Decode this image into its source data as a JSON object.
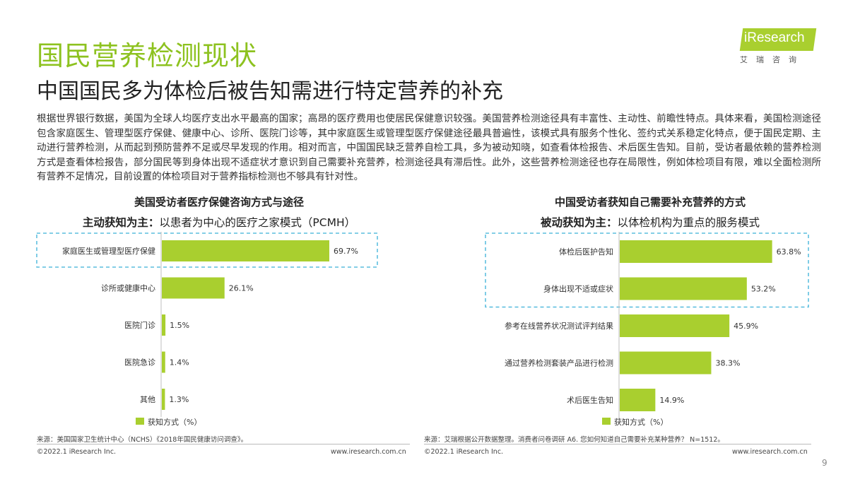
{
  "header": {
    "title": "国民营养检测现状",
    "subtitle": "中国国民多为体检后被告知需进行特定营养的补充"
  },
  "logo": {
    "word": "iResearch",
    "sub": "艾瑞咨询"
  },
  "intro": "根据世界银行数据，美国为全球人均医疗支出水平最高的国家；高昂的医疗费用也使居民保健意识较强。美国营养检测途径具有丰富性、主动性、前瞻性特点。具体来看，美国检测途径包含家庭医生、管理型医疗保健、健康中心、诊所、医院门诊等，其中家庭医生或管理型医疗保健途径最具普遍性，该模式具有服务个性化、签约式关系稳定化特点，便于国民定期、主动进行营养检测，从而起到预防营养不足或尽早发现的作用。相对而言，中国国民缺乏营养自检工具，多为被动知晓，如查看体检报告、术后医生告知。目前，受访者最依赖的营养检测方式是查看体检报告，部分国民等到身体出现不适症状才意识到自己需要补充营养，检测途径具有滞后性。此外，这些营养检测途径也存在局限性，例如体检项目有限，难以全面检测所有营养不足情况，目前设置的体检项目对于营养指标检测也不够具有针对性。",
  "left": {
    "chart_title": "美国受访者医疗保健咨询方式与途径",
    "sub_bold": "主动获知为主：",
    "sub_rest": "以患者为中心的医疗之家模式（PCMH）",
    "source": "来源：美国国家卫生统计中心（NCHS）《2018年国民健康访问调查》。",
    "copyright": "©2022.1 iResearch Inc.",
    "url": "www.iresearch.com.cn"
  },
  "right": {
    "chart_title": "中国受访者获知自己需要补充营养的方式",
    "sub_bold": "被动获知为主：",
    "sub_rest": "以体检机构为重点的服务模式",
    "source": "来源：艾瑞根据公开数据整理。消费者问卷调研 A6. 您如何知道自己需要补充某种营养？ N=1512。",
    "copyright": "©2022.1 iResearch Inc.",
    "url": "www.iresearch.com.cn"
  },
  "page_number": "9",
  "chart_data": [
    {
      "type": "bar",
      "orientation": "horizontal",
      "title": "美国受访者医疗保健咨询方式与途径",
      "categories": [
        "家庭医生或管理型医疗保健",
        "诊所或健康中心",
        "医院门诊",
        "医院急诊",
        "其他"
      ],
      "series": [
        {
          "name": "获知方式（%）",
          "values": [
            69.7,
            26.1,
            1.5,
            1.4,
            1.3
          ]
        }
      ],
      "unit": "%",
      "xlim": [
        0,
        100
      ],
      "highlight": [
        0
      ],
      "legend": "bottom-left",
      "color": "#a9cf2f"
    },
    {
      "type": "bar",
      "orientation": "horizontal",
      "title": "中国受访者获知自己需要补充营养的方式",
      "categories": [
        "体检后医护告知",
        "身体出现不适或症状",
        "参考在线营养状况测试评判结果",
        "通过营养检测套装产品进行检测",
        "术后医生告知"
      ],
      "series": [
        {
          "name": "获知方式（%）",
          "values": [
            63.8,
            53.2,
            45.9,
            38.3,
            14.9
          ]
        }
      ],
      "unit": "%",
      "xlim": [
        0,
        100
      ],
      "highlight": [
        0,
        1
      ],
      "legend": "bottom-left",
      "color": "#a9cf2f"
    }
  ]
}
